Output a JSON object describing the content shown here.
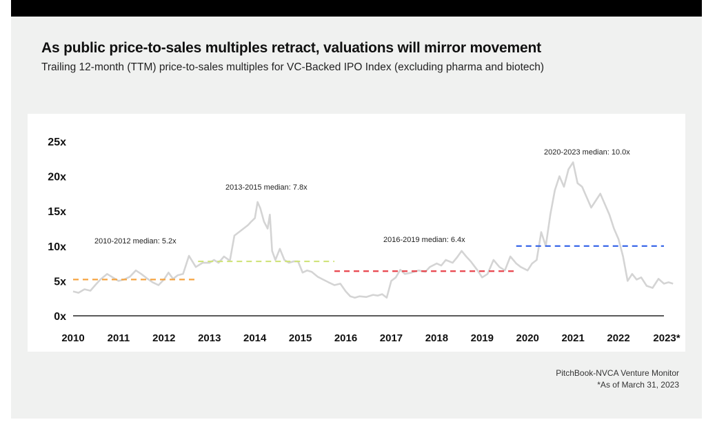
{
  "header": {
    "title": "As public price-to-sales multiples retract, valuations will mirror movement",
    "subtitle": "Trailing 12-month (TTM) price-to-sales multiples for VC-Backed IPO Index (excluding pharma and biotech)"
  },
  "footer": {
    "source": "PitchBook-NVCA Venture Monitor",
    "note": "*As of March 31, 2023"
  },
  "chart_data": {
    "type": "line",
    "title": "",
    "xlabel": "",
    "ylabel": "",
    "x_ticks": [
      "2010",
      "2011",
      "2012",
      "2013",
      "2014",
      "2015",
      "2016",
      "2017",
      "2018",
      "2019",
      "2020",
      "2021",
      "2022",
      "2023*"
    ],
    "y_ticks": [
      "0x",
      "5x",
      "10x",
      "15x",
      "20x",
      "25x"
    ],
    "xlim": [
      2010,
      2023.25
    ],
    "ylim": [
      0,
      25
    ],
    "grid": false,
    "line_color": "#d4d4d4",
    "series": [
      {
        "x": [
          2010.0,
          2010.12,
          2010.25,
          2010.38,
          2010.5,
          2010.6,
          2010.75,
          2010.9,
          2011.0,
          2011.12,
          2011.25,
          2011.38,
          2011.5,
          2011.62,
          2011.75,
          2011.88,
          2012.0,
          2012.1,
          2012.2,
          2012.3,
          2012.42,
          2012.55,
          2012.7,
          2012.85,
          2013.0,
          2013.1,
          2013.2,
          2013.32,
          2013.45,
          2013.55,
          2013.65,
          2013.75,
          2013.85,
          2013.92,
          2014.0,
          2014.06,
          2014.12,
          2014.2,
          2014.28,
          2014.33,
          2014.38,
          2014.45,
          2014.55,
          2014.65,
          2014.75,
          2014.85,
          2014.95,
          2015.05,
          2015.15,
          2015.25,
          2015.38,
          2015.5,
          2015.62,
          2015.75,
          2015.88,
          2016.0,
          2016.1,
          2016.2,
          2016.3,
          2016.45,
          2016.6,
          2016.7,
          2016.8,
          2016.9,
          2017.0,
          2017.1,
          2017.2,
          2017.3,
          2017.45,
          2017.6,
          2017.75,
          2017.85,
          2018.0,
          2018.1,
          2018.2,
          2018.35,
          2018.45,
          2018.55,
          2018.65,
          2018.75,
          2018.9,
          2019.0,
          2019.12,
          2019.25,
          2019.38,
          2019.5,
          2019.62,
          2019.75,
          2019.85,
          2020.0,
          2020.1,
          2020.2,
          2020.3,
          2020.4,
          2020.5,
          2020.6,
          2020.7,
          2020.8,
          2020.9,
          2021.0,
          2021.1,
          2021.2,
          2021.3,
          2021.4,
          2021.5,
          2021.6,
          2021.7,
          2021.8,
          2021.9,
          2022.0,
          2022.1,
          2022.2,
          2022.3,
          2022.4,
          2022.5,
          2022.62,
          2022.75,
          2022.88,
          2023.0,
          2023.1,
          2023.2
        ],
        "y": [
          3.5,
          3.3,
          3.8,
          3.6,
          4.5,
          5.2,
          6.0,
          5.4,
          5.0,
          5.2,
          5.6,
          6.5,
          6.0,
          5.4,
          4.8,
          4.4,
          5.2,
          6.2,
          5.3,
          5.8,
          6.0,
          8.6,
          7.0,
          7.6,
          7.6,
          8.0,
          7.6,
          8.5,
          7.9,
          11.5,
          12.0,
          12.5,
          13.0,
          13.5,
          14.0,
          16.3,
          15.4,
          13.5,
          12.5,
          14.5,
          9.3,
          8.0,
          9.6,
          8.0,
          7.6,
          7.8,
          7.8,
          6.2,
          6.5,
          6.3,
          5.6,
          5.2,
          4.8,
          4.4,
          4.6,
          3.5,
          2.8,
          2.6,
          2.8,
          2.7,
          3.0,
          2.9,
          3.1,
          2.6,
          5.0,
          5.5,
          6.6,
          6.0,
          6.2,
          6.5,
          6.3,
          7.0,
          7.5,
          7.2,
          8.0,
          7.6,
          8.4,
          9.3,
          8.5,
          7.8,
          6.5,
          5.5,
          6.0,
          8.0,
          7.0,
          6.5,
          8.5,
          7.5,
          7.0,
          6.5,
          7.5,
          8.0,
          12.0,
          10.0,
          14.5,
          18.0,
          20.0,
          18.5,
          21.0,
          22.0,
          19.0,
          18.5,
          17.0,
          15.5,
          16.5,
          17.5,
          16.0,
          14.5,
          12.5,
          11.0,
          8.5,
          5.0,
          6.0,
          5.2,
          5.5,
          4.3,
          4.0,
          5.3,
          4.6,
          4.8,
          4.6
        ]
      }
    ],
    "medians": [
      {
        "label": "2010-2012 median: 5.2x",
        "value": 5.2,
        "x_start": 2010,
        "x_end": 2012.75,
        "color": "#f5a340"
      },
      {
        "label": "2013-2015 median: 7.8x",
        "value": 7.8,
        "x_start": 2012.75,
        "x_end": 2015.75,
        "color": "#cfe37a"
      },
      {
        "label": "2016-2019 median: 6.4x",
        "value": 6.4,
        "x_start": 2015.75,
        "x_end": 2019.75,
        "color": "#e8424a"
      },
      {
        "label": "2020-2023 median: 10.0x",
        "value": 10.0,
        "x_start": 2019.75,
        "x_end": 2023.0,
        "color": "#2f5fe8"
      }
    ]
  }
}
